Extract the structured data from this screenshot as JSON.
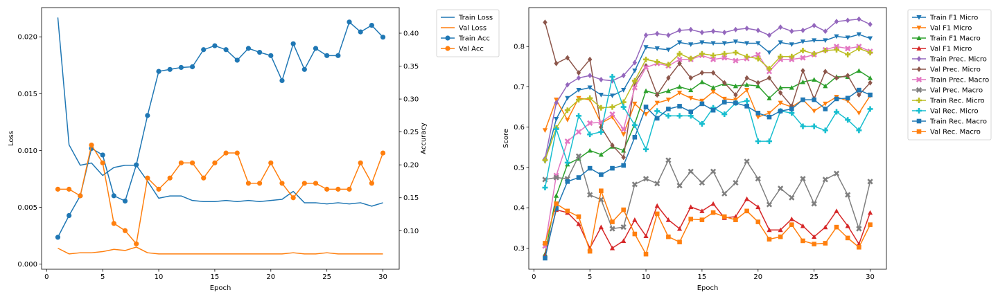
{
  "chart_data": [
    {
      "type": "line",
      "xlabel": "Epoch",
      "ylabel": "Loss",
      "y2label": "Accuracy",
      "xlim": [
        -0.45,
        31.45
      ],
      "ylim": [
        -0.00045,
        0.02257
      ],
      "y2lim": [
        0.0414,
        0.4389
      ],
      "xticks": [
        0,
        5,
        10,
        15,
        20,
        25,
        30
      ],
      "yticks": [
        0.0,
        0.005,
        0.01,
        0.015,
        0.02
      ],
      "ytick_labels": [
        "0.000",
        "0.005",
        "0.010",
        "0.015",
        "0.020"
      ],
      "y2ticks": [
        0.1,
        0.15,
        0.2,
        0.25,
        0.3,
        0.35,
        0.4
      ],
      "y2tick_labels": [
        "0.10",
        "0.15",
        "0.20",
        "0.25",
        "0.30",
        "0.35",
        "0.40"
      ],
      "grid": false,
      "legend": "outside-right-top",
      "x": [
        1,
        2,
        3,
        4,
        5,
        6,
        7,
        8,
        9,
        10,
        11,
        12,
        13,
        14,
        15,
        16,
        17,
        18,
        19,
        20,
        21,
        22,
        23,
        24,
        25,
        26,
        27,
        28,
        29,
        30
      ],
      "series": [
        {
          "name": "Train Loss",
          "axis": "left",
          "color": "#1f77b4",
          "marker": "none",
          "values": [
            0.0217,
            0.0105,
            0.0087,
            0.0089,
            0.0078,
            0.0085,
            0.0087,
            0.0087,
            0.0073,
            0.0058,
            0.006,
            0.006,
            0.0056,
            0.0055,
            0.0055,
            0.0056,
            0.0055,
            0.0056,
            0.0055,
            0.0056,
            0.0057,
            0.0064,
            0.0054,
            0.0054,
            0.0053,
            0.0054,
            0.0053,
            0.0054,
            0.0051,
            0.0054
          ]
        },
        {
          "name": "Val Loss",
          "axis": "left",
          "color": "#ff7f0e",
          "marker": "none",
          "values": [
            0.0014,
            0.0009,
            0.001,
            0.001,
            0.0011,
            0.0013,
            0.0012,
            0.0015,
            0.001,
            0.0009,
            0.0009,
            0.0009,
            0.0009,
            0.0009,
            0.0009,
            0.0009,
            0.0009,
            0.0009,
            0.0009,
            0.0009,
            0.0009,
            0.001,
            0.0009,
            0.0009,
            0.001,
            0.0009,
            0.0009,
            0.0009,
            0.0009,
            0.0009
          ]
        },
        {
          "name": "Train Acc",
          "axis": "right",
          "color": "#1f77b4",
          "marker": "circle",
          "values": [
            0.09,
            0.123,
            0.153,
            0.225,
            0.215,
            0.153,
            0.145,
            0.2,
            0.275,
            0.342,
            0.345,
            0.348,
            0.349,
            0.375,
            0.381,
            0.375,
            0.359,
            0.377,
            0.371,
            0.366,
            0.328,
            0.384,
            0.345,
            0.377,
            0.366,
            0.366,
            0.417,
            0.402,
            0.412,
            0.394
          ]
        },
        {
          "name": "Val Acc",
          "axis": "right",
          "color": "#ff7f0e",
          "marker": "circle",
          "values": [
            0.163,
            0.163,
            0.153,
            0.23,
            0.203,
            0.111,
            0.1,
            0.08,
            0.18,
            0.163,
            0.18,
            0.203,
            0.203,
            0.18,
            0.203,
            0.218,
            0.218,
            0.172,
            0.172,
            0.203,
            0.172,
            0.15,
            0.172,
            0.172,
            0.163,
            0.163,
            0.163,
            0.203,
            0.172,
            0.218
          ]
        }
      ]
    },
    {
      "type": "line",
      "xlabel": "Epoch",
      "ylabel": "Score",
      "xlim": [
        -0.45,
        31.45
      ],
      "ylim": [
        0.2475,
        0.8965
      ],
      "xticks": [
        0,
        5,
        10,
        15,
        20,
        25,
        30
      ],
      "yticks": [
        0.3,
        0.4,
        0.5,
        0.6,
        0.7,
        0.8
      ],
      "ytick_labels": [
        "0.3",
        "0.4",
        "0.5",
        "0.6",
        "0.7",
        "0.8"
      ],
      "grid": false,
      "legend": "outside-right-top",
      "x": [
        1,
        2,
        3,
        4,
        5,
        6,
        7,
        8,
        9,
        10,
        11,
        12,
        13,
        14,
        15,
        16,
        17,
        18,
        19,
        20,
        21,
        22,
        23,
        24,
        25,
        26,
        27,
        28,
        29,
        30
      ],
      "series": [
        {
          "name": "Train F1 Micro",
          "color": "#1f77b4",
          "marker": "triangle-down",
          "values": [
            0.515,
            0.62,
            0.672,
            0.692,
            0.698,
            0.68,
            0.678,
            0.692,
            0.74,
            0.798,
            0.795,
            0.792,
            0.81,
            0.805,
            0.81,
            0.808,
            0.808,
            0.812,
            0.808,
            0.808,
            0.785,
            0.81,
            0.805,
            0.812,
            0.815,
            0.815,
            0.825,
            0.822,
            0.83,
            0.82
          ]
        },
        {
          "name": "Val F1 Micro",
          "color": "#ff7f0e",
          "marker": "triangle-down",
          "values": [
            0.592,
            0.668,
            0.618,
            0.672,
            0.668,
            0.61,
            0.625,
            0.582,
            0.658,
            0.632,
            0.66,
            0.668,
            0.685,
            0.672,
            0.665,
            0.688,
            0.67,
            0.668,
            0.692,
            0.625,
            0.635,
            0.66,
            0.65,
            0.668,
            0.64,
            0.658,
            0.675,
            0.665,
            0.635,
            0.678
          ]
        },
        {
          "name": "Train F1 Macro",
          "color": "#2ca02c",
          "marker": "triangle-up",
          "values": [
            0.285,
            0.43,
            0.508,
            0.522,
            0.542,
            0.532,
            0.552,
            0.542,
            0.608,
            0.69,
            0.682,
            0.69,
            0.7,
            0.692,
            0.712,
            0.698,
            0.708,
            0.702,
            0.705,
            0.702,
            0.672,
            0.698,
            0.698,
            0.712,
            0.718,
            0.702,
            0.725,
            0.725,
            0.74,
            0.722
          ]
        },
        {
          "name": "Val F1 Micro",
          "color": "#d62728",
          "marker": "triangle-up",
          "values": [
            0.282,
            0.395,
            0.388,
            0.36,
            0.3,
            0.352,
            0.3,
            0.318,
            0.37,
            0.33,
            0.405,
            0.37,
            0.348,
            0.402,
            0.392,
            0.41,
            0.375,
            0.378,
            0.422,
            0.402,
            0.345,
            0.345,
            0.372,
            0.355,
            0.328,
            0.352,
            0.392,
            0.355,
            0.31,
            0.388
          ]
        },
        {
          "name": "Train Prec. Micro",
          "color": "#9467bd",
          "marker": "diamond",
          "values": [
            0.522,
            0.66,
            0.705,
            0.722,
            0.728,
            0.718,
            0.715,
            0.728,
            0.76,
            0.828,
            0.832,
            0.828,
            0.84,
            0.842,
            0.835,
            0.838,
            0.835,
            0.842,
            0.845,
            0.84,
            0.828,
            0.848,
            0.838,
            0.84,
            0.852,
            0.838,
            0.862,
            0.865,
            0.868,
            0.855
          ]
        },
        {
          "name": "Val Prec. Micro",
          "color": "#8c564b",
          "marker": "diamond",
          "values": [
            0.86,
            0.758,
            0.772,
            0.735,
            0.768,
            0.6,
            0.555,
            0.525,
            0.71,
            0.752,
            0.68,
            0.722,
            0.758,
            0.722,
            0.735,
            0.735,
            0.71,
            0.68,
            0.722,
            0.71,
            0.722,
            0.685,
            0.652,
            0.74,
            0.67,
            0.738,
            0.722,
            0.728,
            0.68,
            0.71
          ]
        },
        {
          "name": "Train Prec. Macro",
          "color": "#e377c2",
          "marker": "x",
          "values": [
            0.305,
            0.48,
            0.565,
            0.588,
            0.61,
            0.612,
            0.632,
            0.595,
            0.698,
            0.748,
            0.758,
            0.752,
            0.768,
            0.768,
            0.778,
            0.768,
            0.772,
            0.765,
            0.77,
            0.78,
            0.738,
            0.768,
            0.768,
            0.772,
            0.78,
            0.792,
            0.8,
            0.795,
            0.8,
            0.788
          ]
        },
        {
          "name": "Val Prec. Macro",
          "color": "#7f7f7f",
          "marker": "x",
          "values": [
            0.47,
            0.475,
            0.472,
            0.528,
            0.432,
            0.42,
            0.348,
            0.352,
            0.458,
            0.472,
            0.46,
            0.518,
            0.455,
            0.49,
            0.462,
            0.49,
            0.435,
            0.462,
            0.515,
            0.472,
            0.408,
            0.448,
            0.425,
            0.472,
            0.41,
            0.47,
            0.485,
            0.432,
            0.348,
            0.465
          ]
        },
        {
          "name": "Train Rec. Micro",
          "color": "#bcbd22",
          "marker": "plus",
          "values": [
            0.518,
            0.598,
            0.642,
            0.668,
            0.672,
            0.648,
            0.65,
            0.662,
            0.715,
            0.768,
            0.762,
            0.755,
            0.782,
            0.77,
            0.782,
            0.778,
            0.782,
            0.785,
            0.775,
            0.77,
            0.745,
            0.775,
            0.775,
            0.79,
            0.782,
            0.79,
            0.792,
            0.78,
            0.795,
            0.785
          ]
        },
        {
          "name": "Val Rec. Micro",
          "color": "#17becf",
          "marker": "plus",
          "values": [
            0.45,
            0.595,
            0.512,
            0.628,
            0.582,
            0.588,
            0.725,
            0.65,
            0.605,
            0.545,
            0.64,
            0.628,
            0.628,
            0.628,
            0.608,
            0.648,
            0.632,
            0.66,
            0.665,
            0.565,
            0.565,
            0.64,
            0.635,
            0.602,
            0.602,
            0.592,
            0.638,
            0.618,
            0.592,
            0.645
          ]
        },
        {
          "name": "Train Rec. Macro",
          "color": "#1f77b4",
          "marker": "square",
          "values": [
            0.275,
            0.398,
            0.465,
            0.475,
            0.498,
            0.482,
            0.498,
            0.505,
            0.575,
            0.65,
            0.622,
            0.645,
            0.652,
            0.638,
            0.658,
            0.642,
            0.662,
            0.66,
            0.652,
            0.635,
            0.625,
            0.64,
            0.645,
            0.668,
            0.668,
            0.645,
            0.67,
            0.672,
            0.692,
            0.68
          ]
        },
        {
          "name": "Val Rec. Macro",
          "color": "#ff7f0e",
          "marker": "square",
          "values": [
            0.312,
            0.41,
            0.392,
            0.378,
            0.292,
            0.442,
            0.365,
            0.395,
            0.335,
            0.285,
            0.385,
            0.328,
            0.315,
            0.372,
            0.37,
            0.388,
            0.378,
            0.37,
            0.392,
            0.365,
            0.322,
            0.328,
            0.358,
            0.318,
            0.31,
            0.312,
            0.352,
            0.325,
            0.302,
            0.358
          ]
        }
      ]
    }
  ]
}
